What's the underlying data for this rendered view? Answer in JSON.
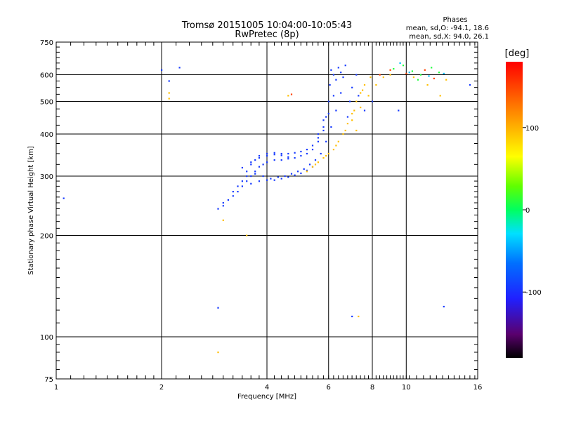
{
  "chart_data": {
    "type": "scatter",
    "title": "Tromsø 20151005 10:04:00-10:05:43",
    "subtitle": "RwPretec (8p)",
    "xlabel": "Frequency [MHz]",
    "ylabel": "Stationary phase Virtual Height [km]",
    "x_scale": "log",
    "y_scale": "log",
    "xlim": [
      1,
      16
    ],
    "ylim": [
      75,
      750
    ],
    "x_ticks": [
      1,
      2,
      4,
      6,
      8,
      10,
      16
    ],
    "y_ticks": [
      75,
      100,
      200,
      300,
      400,
      500,
      600,
      750
    ],
    "grid": true,
    "phase_stats": {
      "heading": "Phases",
      "line_o": "mean, sd,O: -94.1, 18.6",
      "line_x": "mean, sd,X:  94.0, 26.1"
    },
    "colorbar": {
      "label": "[deg]",
      "range": [
        -180,
        180
      ],
      "ticks": [
        "100",
        "0",
        "-100"
      ],
      "tick_values": [
        100,
        0,
        -100
      ]
    },
    "colors": {
      "o_mode": "#1e3cff",
      "x_mode": "#ffc800",
      "grid": "#000000"
    },
    "series": [
      {
        "phase": -94,
        "points": [
          [
            2.9,
            240
          ],
          [
            3.0,
            245
          ],
          [
            3.1,
            255
          ],
          [
            3.2,
            262
          ],
          [
            3.3,
            270
          ],
          [
            3.4,
            280
          ],
          [
            3.5,
            290
          ],
          [
            3.6,
            300
          ],
          [
            3.7,
            310
          ],
          [
            3.8,
            320
          ],
          [
            3.9,
            325
          ],
          [
            4.0,
            330
          ],
          [
            4.2,
            335
          ],
          [
            4.4,
            335
          ],
          [
            4.6,
            338
          ],
          [
            4.8,
            340
          ],
          [
            5.0,
            345
          ],
          [
            5.2,
            350
          ],
          [
            5.4,
            360
          ],
          [
            5.6,
            380
          ],
          [
            5.8,
            410
          ],
          [
            5.9,
            450
          ],
          [
            6.0,
            500
          ],
          [
            6.05,
            560
          ],
          [
            6.1,
            620
          ],
          [
            3.0,
            250
          ],
          [
            3.2,
            270
          ],
          [
            3.4,
            290
          ],
          [
            3.5,
            310
          ],
          [
            3.6,
            325
          ],
          [
            3.7,
            335
          ],
          [
            3.8,
            340
          ],
          [
            4.0,
            345
          ],
          [
            4.2,
            348
          ],
          [
            4.4,
            350
          ],
          [
            4.6,
            350
          ],
          [
            4.8,
            352
          ],
          [
            5.0,
            355
          ],
          [
            5.2,
            360
          ],
          [
            5.4,
            370
          ],
          [
            5.6,
            390
          ],
          [
            5.8,
            420
          ],
          [
            6.0,
            460
          ],
          [
            6.2,
            520
          ],
          [
            6.3,
            580
          ],
          [
            6.4,
            630
          ],
          [
            3.3,
            280
          ],
          [
            3.5,
            300
          ],
          [
            3.7,
            305
          ],
          [
            3.9,
            300
          ],
          [
            4.1,
            295
          ],
          [
            4.3,
            298
          ],
          [
            4.5,
            300
          ],
          [
            4.7,
            305
          ],
          [
            4.9,
            310
          ],
          [
            5.1,
            315
          ],
          [
            5.3,
            325
          ],
          [
            5.5,
            335
          ],
          [
            5.7,
            350
          ],
          [
            5.9,
            380
          ],
          [
            6.1,
            420
          ],
          [
            6.3,
            470
          ],
          [
            6.5,
            530
          ],
          [
            6.6,
            590
          ],
          [
            6.7,
            640
          ],
          [
            3.6,
            285
          ],
          [
            3.8,
            290
          ],
          [
            4.0,
            292
          ],
          [
            4.2,
            292
          ],
          [
            4.4,
            295
          ],
          [
            4.6,
            298
          ],
          [
            4.8,
            302
          ],
          [
            5.0,
            306
          ],
          [
            5.2,
            312
          ],
          [
            5.4,
            320
          ],
          [
            6.8,
            450
          ],
          [
            6.9,
            500
          ],
          [
            7.0,
            550
          ],
          [
            7.2,
            600
          ],
          [
            3.4,
            318
          ],
          [
            3.6,
            330
          ],
          [
            3.8,
            345
          ],
          [
            4.0,
            350
          ],
          [
            4.2,
            352
          ],
          [
            4.4,
            346
          ],
          [
            4.6,
            342
          ],
          [
            5.6,
            400
          ],
          [
            5.8,
            440
          ],
          [
            6.2,
            600
          ],
          [
            6.5,
            610
          ],
          [
            7.3,
            520
          ],
          [
            7.6,
            470
          ],
          [
            8.0,
            500
          ],
          [
            9.5,
            470
          ],
          [
            2.0,
            620
          ],
          [
            2.1,
            575
          ],
          [
            2.25,
            630
          ],
          [
            2.9,
            122
          ],
          [
            7.0,
            115
          ],
          [
            12.8,
            123
          ],
          [
            15.2,
            560
          ],
          [
            1.05,
            258
          ]
        ]
      },
      {
        "phase": 94,
        "points": [
          [
            5.4,
            320
          ],
          [
            5.6,
            330
          ],
          [
            5.8,
            340
          ],
          [
            6.0,
            350
          ],
          [
            6.2,
            360
          ],
          [
            6.4,
            380
          ],
          [
            6.6,
            400
          ],
          [
            6.8,
            430
          ],
          [
            7.0,
            460
          ],
          [
            7.2,
            500
          ],
          [
            7.4,
            530
          ],
          [
            7.6,
            560
          ],
          [
            5.2,
            310
          ],
          [
            5.5,
            325
          ],
          [
            5.9,
            345
          ],
          [
            6.3,
            370
          ],
          [
            6.7,
            410
          ],
          [
            7.1,
            470
          ],
          [
            7.5,
            540
          ],
          [
            7.9,
            590
          ],
          [
            7.0,
            440
          ],
          [
            7.2,
            410
          ],
          [
            7.4,
            480
          ],
          [
            7.8,
            520
          ],
          [
            8.2,
            560
          ],
          [
            8.6,
            590
          ],
          [
            9.0,
            600
          ],
          [
            10.5,
            590
          ],
          [
            11.5,
            560
          ],
          [
            12.5,
            520
          ],
          [
            13.0,
            580
          ],
          [
            2.1,
            530
          ],
          [
            2.1,
            510
          ],
          [
            4.6,
            520
          ],
          [
            3.0,
            222
          ],
          [
            2.9,
            90
          ],
          [
            7.3,
            115
          ],
          [
            3.5,
            200
          ]
        ]
      },
      {
        "phase": 10,
        "points": [
          [
            9.2,
            625
          ],
          [
            9.8,
            640
          ],
          [
            10.4,
            615
          ],
          [
            11.0,
            600
          ],
          [
            11.8,
            630
          ],
          [
            12.4,
            610
          ],
          [
            10.8,
            580
          ]
        ]
      },
      {
        "phase": 150,
        "points": [
          [
            8.4,
            600
          ],
          [
            9.0,
            620
          ],
          [
            10.0,
            605
          ],
          [
            11.3,
            620
          ],
          [
            12.0,
            585
          ],
          [
            4.7,
            525
          ]
        ]
      },
      {
        "phase": -40,
        "points": [
          [
            9.6,
            650
          ],
          [
            10.2,
            610
          ],
          [
            11.6,
            595
          ],
          [
            12.8,
            605
          ]
        ]
      }
    ]
  }
}
